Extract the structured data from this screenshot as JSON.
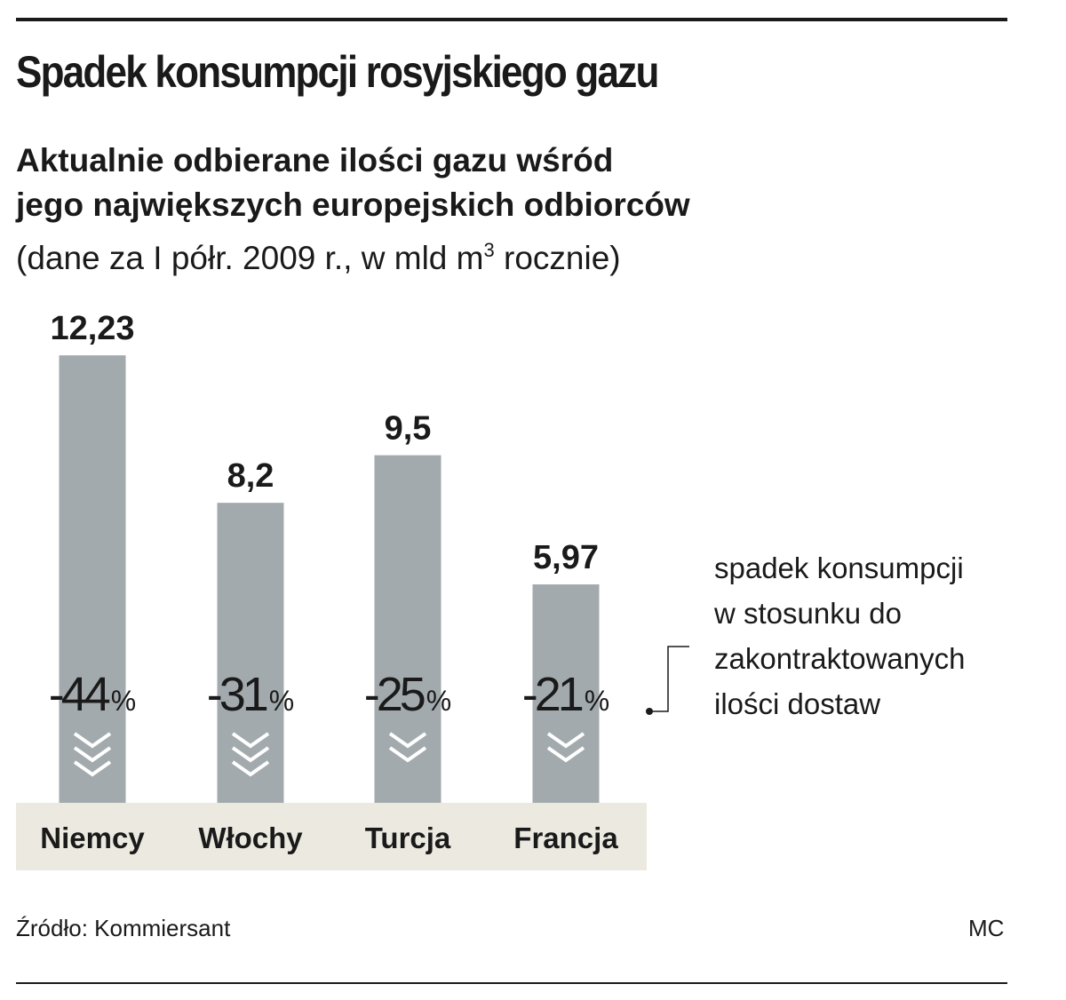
{
  "title": "Spadek konsumpcji rosyjskiego gazu",
  "subtitle_line1": "Aktualnie odbierane ilości gazu wśród",
  "subtitle_line2": "jego największych europejskich odbiorców",
  "units_prefix": "(dane za I półr. 2009 r., w mld m",
  "units_sup": "3",
  "units_suffix": " rocznie)",
  "note_lines": [
    "spadek konsumpcji",
    "w stosunku do",
    "zakontraktowanych",
    "ilości dostaw"
  ],
  "source": "Źródło: Kommiersant",
  "author": "MC",
  "colors": {
    "bar": "#a3aaad",
    "band": "#ece9e1",
    "text": "#1a1a1a",
    "arrow": "#ffffff"
  },
  "chart_data": {
    "type": "bar",
    "categories": [
      "Niemcy",
      "Włochy",
      "Turcja",
      "Francja"
    ],
    "values": [
      12.23,
      8.2,
      9.5,
      5.97
    ],
    "value_labels": [
      "12,23",
      "8,2",
      "9,5",
      "5,97"
    ],
    "change_labels": [
      "-44",
      "-31",
      "-25",
      "-21"
    ],
    "change_values": [
      -44,
      -31,
      -25,
      -21
    ],
    "change_unit": "%",
    "arrow_icon": "chevron-down-icon",
    "arrow_counts": [
      3,
      3,
      2,
      2
    ]
  }
}
